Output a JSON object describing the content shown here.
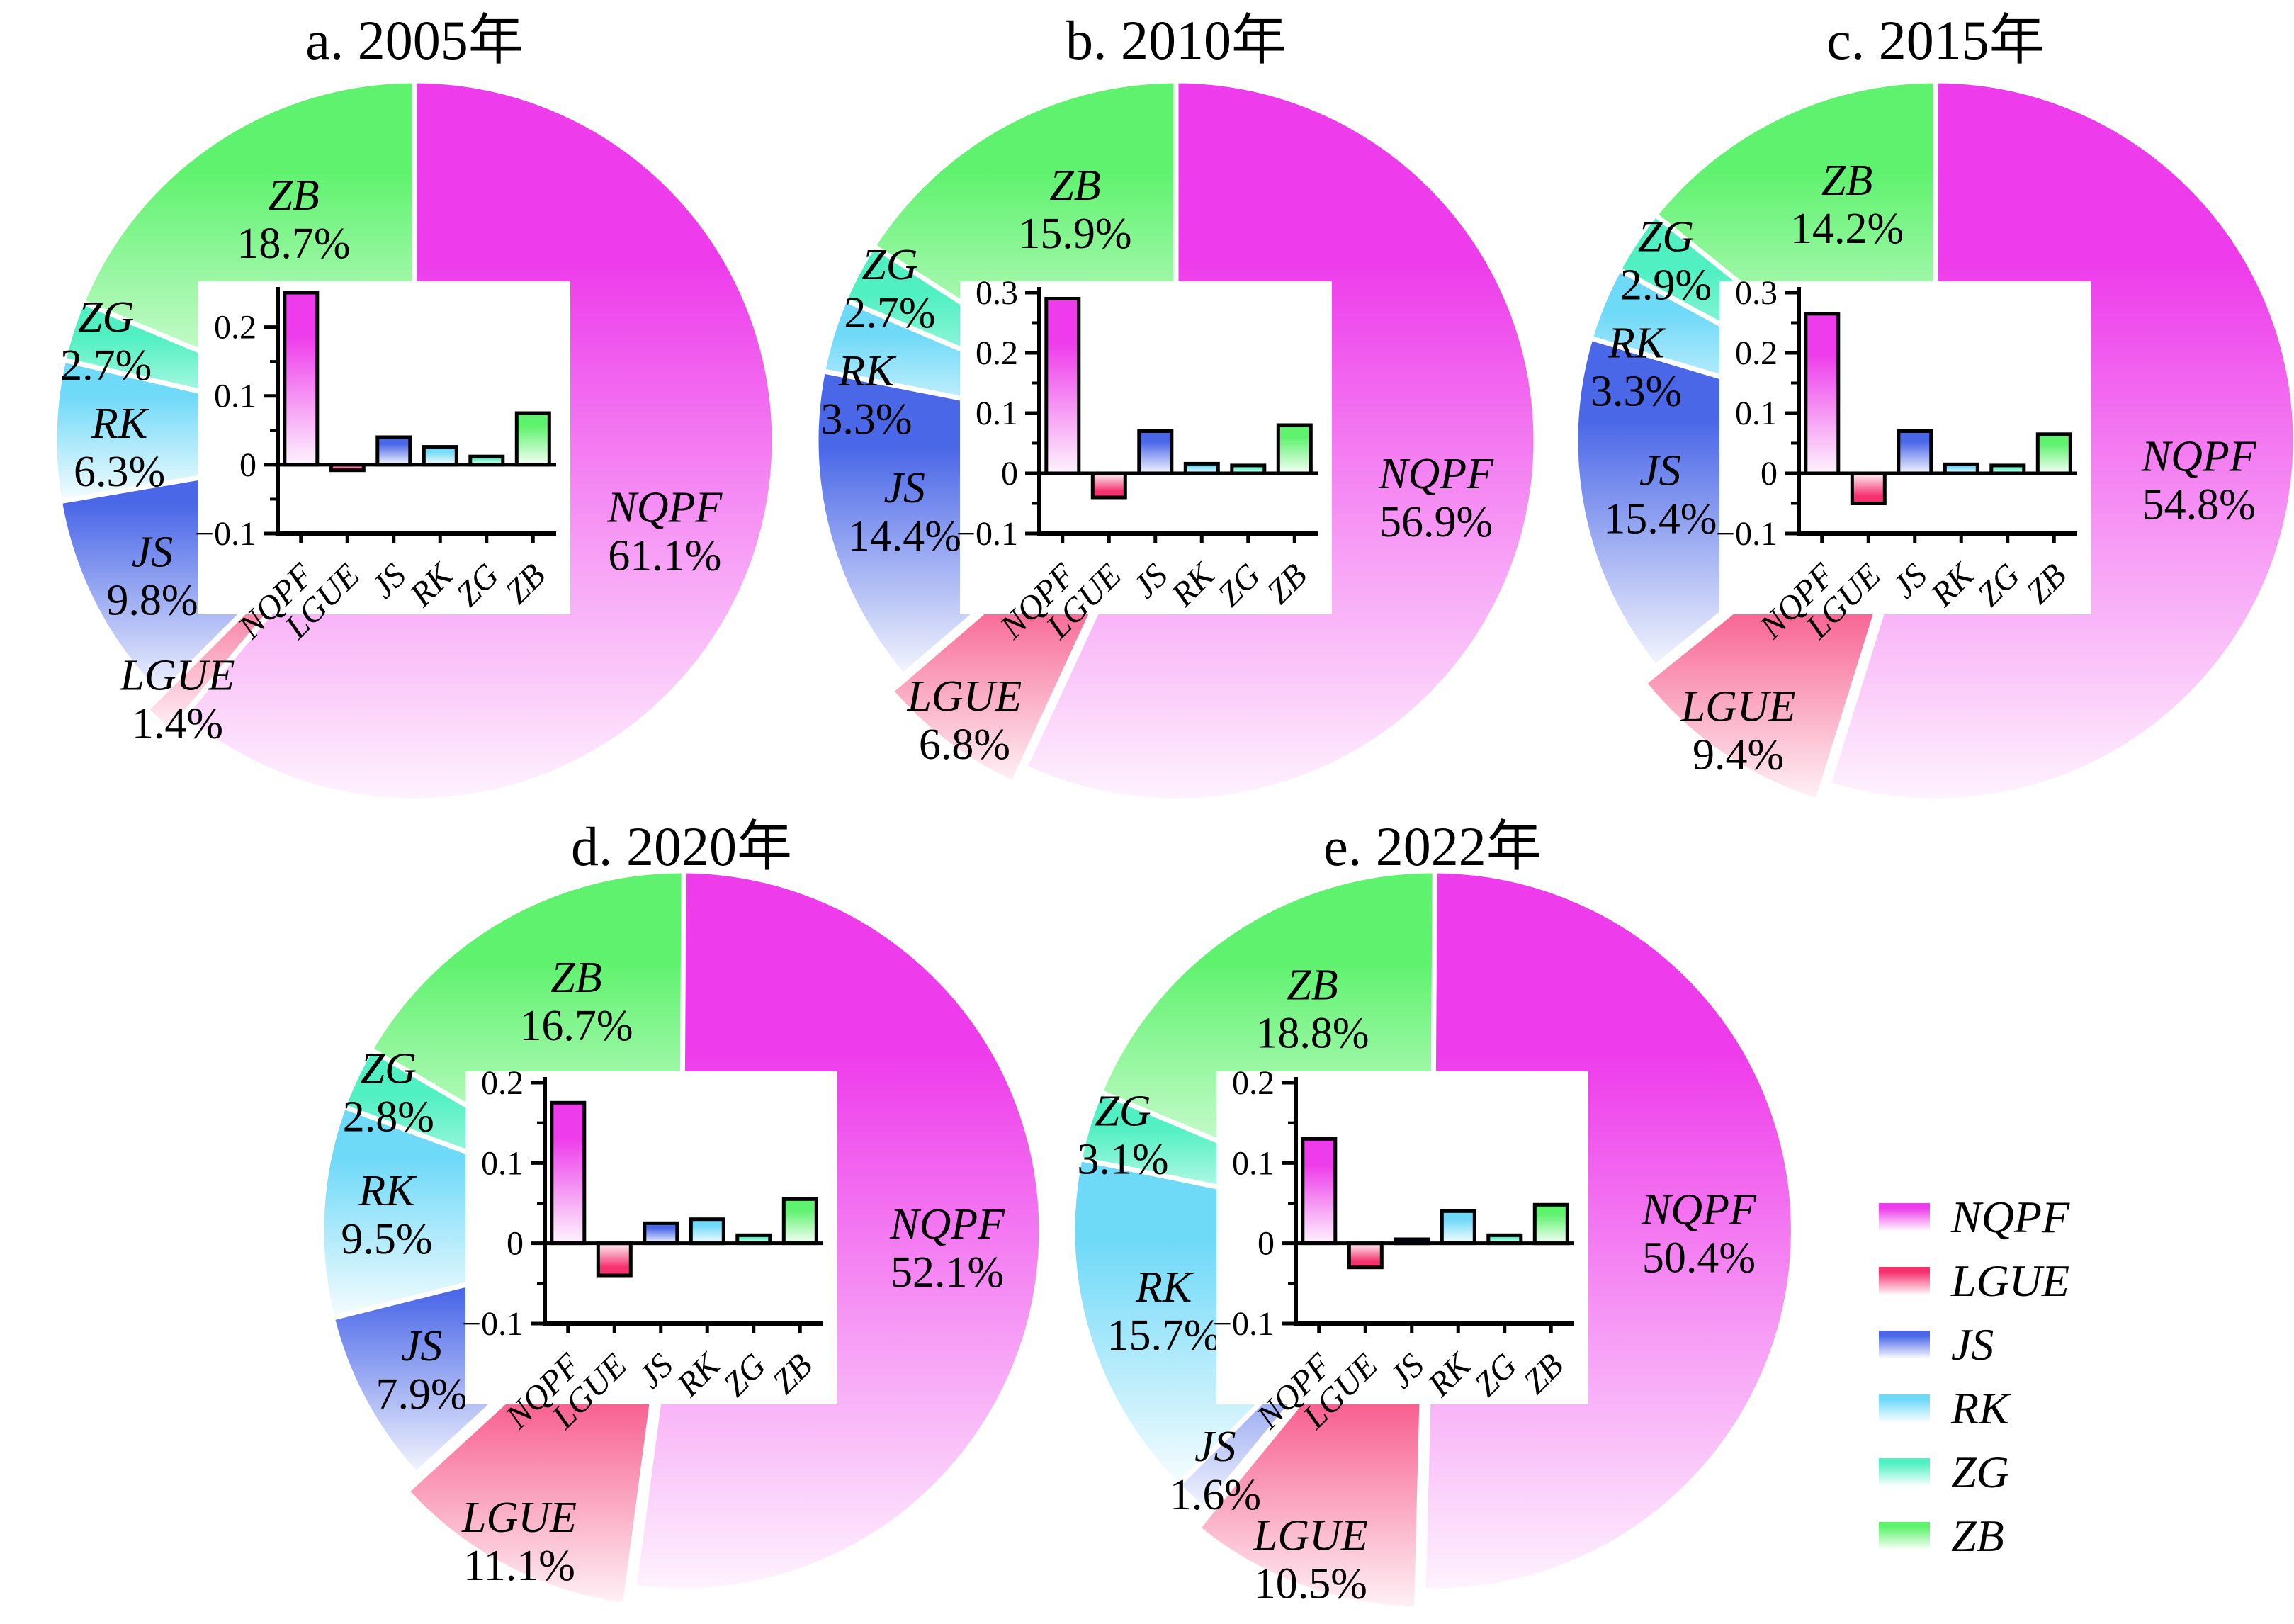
{
  "figure_background": "#ffffff",
  "categories": [
    "NQPF",
    "LGUE",
    "JS",
    "RK",
    "ZG",
    "ZB"
  ],
  "colors": {
    "NQPF": "#ee3beb",
    "LGUE": "#f5316f",
    "JS": "#4a67e8",
    "RK": "#6fd9f8",
    "ZG": "#50f0c2",
    "ZB": "#5ff26e"
  },
  "legend": {
    "position": "bottom-right",
    "entries": [
      "NQPF",
      "LGUE",
      "JS",
      "RK",
      "ZG",
      "ZB"
    ]
  },
  "chart_data": [
    {
      "panel": "a",
      "title": "a. 2005年",
      "pie": {
        "type": "pie",
        "unit": "%",
        "categories": [
          "NQPF",
          "LGUE",
          "JS",
          "RK",
          "ZG",
          "ZB"
        ],
        "values": [
          61.1,
          1.4,
          9.8,
          6.3,
          2.7,
          18.7
        ],
        "percent_labels": [
          "61.1%",
          "1.4%",
          "9.8%",
          "6.3%",
          "2.7%",
          "18.7%"
        ]
      },
      "inset": {
        "type": "bar",
        "categories": [
          "NQPF",
          "LGUE",
          "JS",
          "RK",
          "ZG",
          "ZB"
        ],
        "values": [
          0.25,
          -0.008,
          0.04,
          0.026,
          0.012,
          0.075
        ],
        "ylim": [
          -0.1,
          0.25
        ],
        "yticks": [
          0.2,
          0.1,
          0,
          -0.1
        ]
      }
    },
    {
      "panel": "b",
      "title": "b. 2010年",
      "pie": {
        "type": "pie",
        "unit": "%",
        "categories": [
          "NQPF",
          "LGUE",
          "JS",
          "RK",
          "ZG",
          "ZB"
        ],
        "values": [
          56.9,
          6.8,
          14.4,
          3.3,
          2.7,
          15.9
        ],
        "percent_labels": [
          "56.9%",
          "6.8%",
          "14.4%",
          "3.3%",
          "2.7%",
          "15.9%"
        ]
      },
      "inset": {
        "type": "bar",
        "categories": [
          "NQPF",
          "LGUE",
          "JS",
          "RK",
          "ZG",
          "ZB"
        ],
        "values": [
          0.29,
          -0.04,
          0.07,
          0.016,
          0.013,
          0.08
        ],
        "ylim": [
          -0.1,
          0.3
        ],
        "yticks": [
          0.3,
          0.2,
          0.1,
          0,
          -0.1
        ]
      }
    },
    {
      "panel": "c",
      "title": "c. 2015年",
      "pie": {
        "type": "pie",
        "unit": "%",
        "categories": [
          "NQPF",
          "LGUE",
          "JS",
          "RK",
          "ZG",
          "ZB"
        ],
        "values": [
          54.8,
          9.4,
          15.4,
          3.3,
          2.9,
          14.2
        ],
        "percent_labels": [
          "54.8%",
          "9.4%",
          "15.4%",
          "3.3%",
          "2.9%",
          "14.2%"
        ]
      },
      "inset": {
        "type": "bar",
        "categories": [
          "NQPF",
          "LGUE",
          "JS",
          "RK",
          "ZG",
          "ZB"
        ],
        "values": [
          0.265,
          -0.05,
          0.07,
          0.015,
          0.013,
          0.065
        ],
        "ylim": [
          -0.1,
          0.3
        ],
        "yticks": [
          0.3,
          0.2,
          0.1,
          0,
          -0.1
        ]
      }
    },
    {
      "panel": "d",
      "title": "d. 2020年",
      "pie": {
        "type": "pie",
        "unit": "%",
        "categories": [
          "NQPF",
          "LGUE",
          "JS",
          "RK",
          "ZG",
          "ZB"
        ],
        "values": [
          52.1,
          11.1,
          7.9,
          9.5,
          2.8,
          16.7
        ],
        "percent_labels": [
          "52.1%",
          "11.1%",
          "7.9%",
          "9.5%",
          "2.8%",
          "16.7%"
        ]
      },
      "inset": {
        "type": "bar",
        "categories": [
          "NQPF",
          "LGUE",
          "JS",
          "RK",
          "ZG",
          "ZB"
        ],
        "values": [
          0.175,
          -0.04,
          0.025,
          0.03,
          0.01,
          0.055
        ],
        "ylim": [
          -0.1,
          0.2
        ],
        "yticks": [
          0.2,
          0.1,
          0,
          -0.1
        ]
      }
    },
    {
      "panel": "e",
      "title": "e. 2022年",
      "pie": {
        "type": "pie",
        "unit": "%",
        "categories": [
          "NQPF",
          "LGUE",
          "JS",
          "RK",
          "ZG",
          "ZB"
        ],
        "values": [
          50.4,
          10.5,
          1.6,
          15.7,
          3.1,
          18.8
        ],
        "percent_labels": [
          "50.4%",
          "10.5%",
          "1.6%",
          "15.7%",
          "3.1%",
          "18.8%"
        ]
      },
      "inset": {
        "type": "bar",
        "categories": [
          "NQPF",
          "LGUE",
          "JS",
          "RK",
          "ZG",
          "ZB"
        ],
        "values": [
          0.13,
          -0.03,
          0.005,
          0.04,
          0.01,
          0.048
        ],
        "ylim": [
          -0.1,
          0.2
        ],
        "yticks": [
          0.2,
          0.1,
          0,
          -0.1
        ]
      }
    }
  ]
}
